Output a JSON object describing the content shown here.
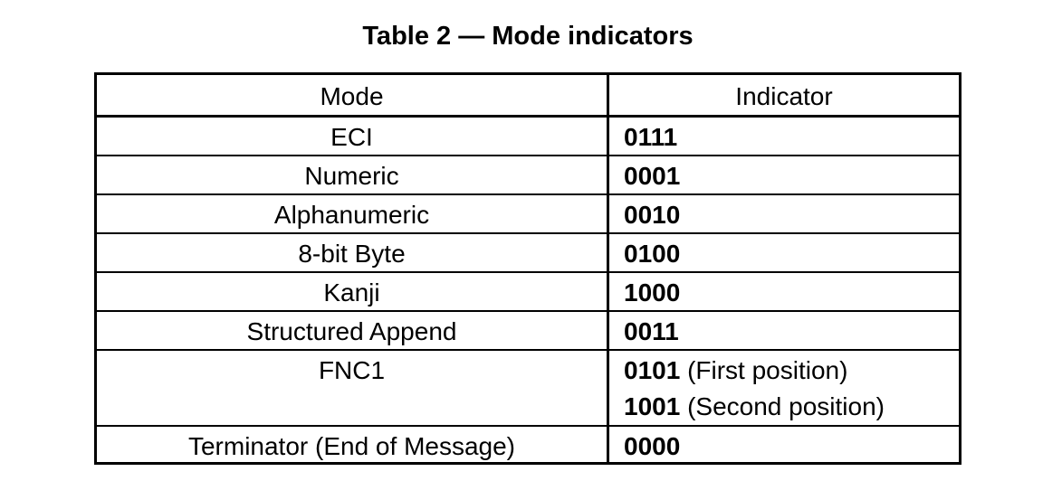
{
  "caption": "Table 2 — Mode indicators",
  "table": {
    "headers": {
      "mode": "Mode",
      "indicator": "Indicator"
    },
    "rows": [
      {
        "mode": "ECI",
        "code": "0111"
      },
      {
        "mode": "Numeric",
        "code": "0001"
      },
      {
        "mode": "Alphanumeric",
        "code": "0010"
      },
      {
        "mode": "8-bit Byte",
        "code": "0100"
      },
      {
        "mode": "Kanji",
        "code": "1000"
      },
      {
        "mode": "Structured Append",
        "code": "0011"
      },
      {
        "mode": "FNC1",
        "codes": [
          {
            "code": "0101",
            "note": "(First position)"
          },
          {
            "code": "1001",
            "note": "(Second position)"
          }
        ]
      },
      {
        "mode": "Terminator (End of Message)",
        "code": "0000"
      }
    ]
  }
}
